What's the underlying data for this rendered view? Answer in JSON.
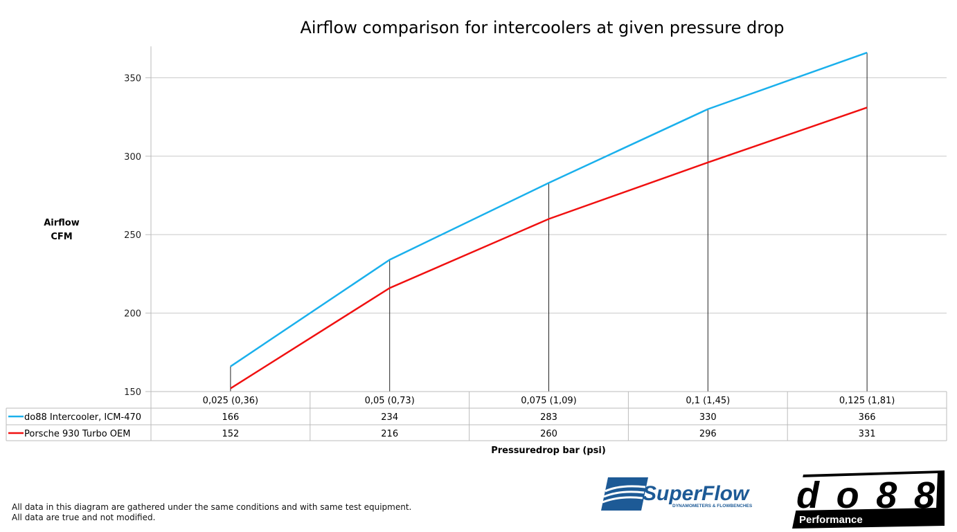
{
  "chart_data": {
    "type": "line",
    "title": "Airflow comparison for intercoolers at given pressure drop",
    "ylabel": [
      "Airflow",
      "CFM"
    ],
    "xlabel": "Pressuredrop bar (psi)",
    "categories": [
      "0,025 (0,36)",
      "0,05 (0,73)",
      "0,075 (1,09)",
      "0,1 (1,45)",
      "0,125 (1,81)"
    ],
    "ylim": [
      150,
      370
    ],
    "yticks": [
      150,
      200,
      250,
      300,
      350
    ],
    "grid": true,
    "drop_lines": true,
    "legend": "data-table-below",
    "series": [
      {
        "name": "do88 Intercooler, ICM-470",
        "color": "#1ab0ec",
        "values": [
          166,
          234,
          283,
          330,
          366
        ]
      },
      {
        "name": "Porsche 930 Turbo OEM",
        "color": "#f01010",
        "values": [
          152,
          216,
          260,
          296,
          331
        ]
      }
    ]
  },
  "notes": [
    "All data in this diagram are gathered under the same conditions and with same test equipment.",
    "All data are true and not modified."
  ],
  "logos": {
    "superflow": {
      "name": "SuperFlow",
      "tagline": "DYNAMOMETERS & FLOWBENCHES",
      "color": "#1d5a96"
    },
    "do88": {
      "name": "do88",
      "tagline": "Performance"
    }
  }
}
